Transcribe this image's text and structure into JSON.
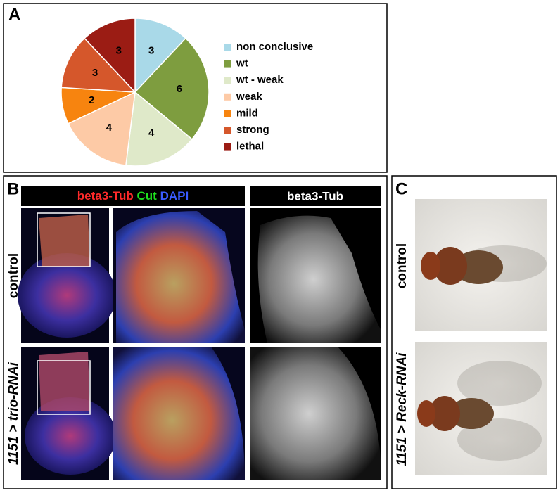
{
  "chart_data": {
    "type": "pie",
    "panel_label": "A",
    "categories": [
      "non conclusive",
      "wt",
      "wt - weak",
      "weak",
      "mild",
      "strong",
      "lethal"
    ],
    "values": [
      3,
      6,
      4,
      4,
      2,
      3,
      3
    ],
    "colors": [
      "#a9d9e8",
      "#7e9d3f",
      "#dfe9c9",
      "#fdcaa6",
      "#f7840f",
      "#d5572b",
      "#9b1c14"
    ]
  },
  "panel_b": {
    "label": "B",
    "header_left": [
      "beta3-Tub",
      "Cut",
      "DAPI"
    ],
    "header_right": "beta3-Tub",
    "rows": [
      "control",
      "1151 > trio-RNAi"
    ]
  },
  "panel_c": {
    "label": "C",
    "rows": [
      "control",
      "1151 > Reck-RNAi"
    ]
  }
}
